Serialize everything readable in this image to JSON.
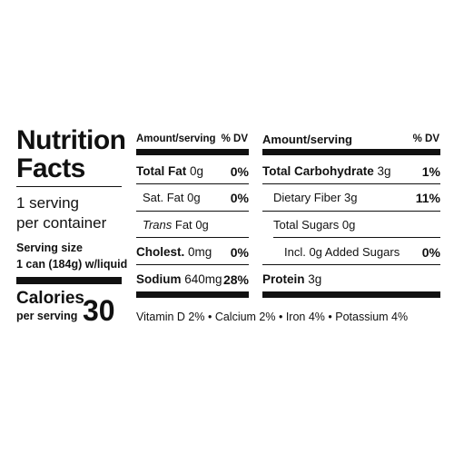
{
  "label": {
    "title_line1": "Nutrition",
    "title_line2": "Facts",
    "servings_line1": "1 serving",
    "servings_line2": "per container",
    "serving_size_label": "Serving size",
    "serving_size_value": "1 can (184g) w/liquid",
    "calories_label": "Calories",
    "calories_sub": "per serving",
    "calories_value": "30"
  },
  "left_table": {
    "header_amount": "Amount/serving",
    "header_dv": "% DV",
    "rows": [
      {
        "name": "Total Fat",
        "amount": "0g",
        "dv": "0%"
      },
      {
        "name": "Sat. Fat",
        "amount": "0g",
        "dv": "0%"
      },
      {
        "name": "Trans",
        "name_suffix": "Fat",
        "amount": "0g",
        "dv": ""
      },
      {
        "name": "Cholest.",
        "amount": "0mg",
        "dv": "0%"
      },
      {
        "name": "Sodium",
        "amount": "640mg",
        "dv": "28%"
      }
    ]
  },
  "right_table": {
    "header_amount": "Amount/serving",
    "header_dv": "% DV",
    "rows": [
      {
        "name": "Total Carbohydrate",
        "amount": "3g",
        "dv": "1%"
      },
      {
        "name": "Dietary Fiber",
        "amount": "3g",
        "dv": "11%"
      },
      {
        "name": "Total Sugars",
        "amount": "0g",
        "dv": ""
      },
      {
        "name": "Incl. 0g Added Sugars",
        "amount": "",
        "dv": "0%"
      },
      {
        "name": "Protein",
        "amount": "3g",
        "dv": ""
      }
    ]
  },
  "footer": "Vitamin D 2% • Calcium 2% • Iron 4% • Potassium 4%"
}
